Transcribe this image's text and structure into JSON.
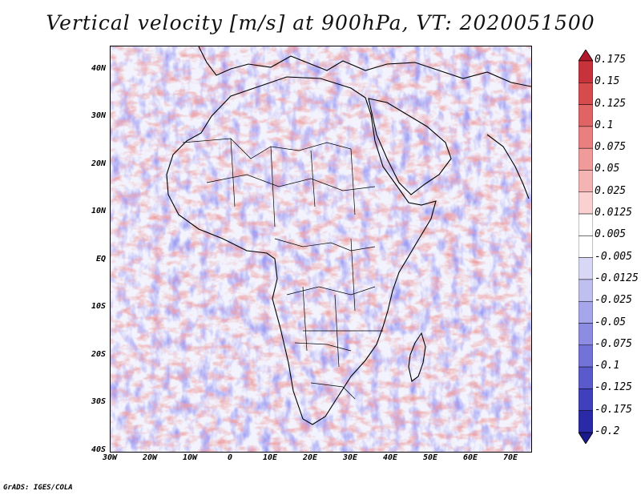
{
  "title": "Vertical velocity [m/s] at 900hPa, VT: 2020051500",
  "footer": "GrADS: IGES/COLA",
  "map": {
    "lat_labels": [
      "40N",
      "30N",
      "20N",
      "10N",
      "EQ",
      "10S",
      "20S",
      "30S",
      "40S"
    ],
    "lat_values": [
      40,
      30,
      20,
      10,
      0,
      -10,
      -20,
      -30,
      -40
    ],
    "lon_labels": [
      "30W",
      "20W",
      "10W",
      "0",
      "10E",
      "20E",
      "30E",
      "40E",
      "50E",
      "60E",
      "70E"
    ],
    "lon_values": [
      -30,
      -20,
      -10,
      0,
      10,
      20,
      30,
      40,
      50,
      60,
      70
    ],
    "lat_range": [
      -40,
      45
    ],
    "lon_range": [
      -30,
      75
    ]
  },
  "colorbar": {
    "labels": [
      "0.175",
      "0.15",
      "0.125",
      "0.1",
      "0.075",
      "0.05",
      "0.025",
      "0.0125",
      "0.005",
      "-0.005",
      "-0.0125",
      "-0.025",
      "-0.05",
      "-0.075",
      "-0.1",
      "-0.125",
      "-0.175",
      "-0.2"
    ],
    "colors": [
      "#b2182b",
      "#c8323a",
      "#d64b4b",
      "#e06464",
      "#e97f7f",
      "#f09a9a",
      "#f5b4b4",
      "#fad0d0",
      "#ffffff",
      "#ffffff",
      "#d8d8f6",
      "#c0c0f0",
      "#a6a6ea",
      "#8c8ce2",
      "#7272d8",
      "#5a5acc",
      "#4040bc",
      "#2a2aa8",
      "#1a1a8c"
    ]
  }
}
